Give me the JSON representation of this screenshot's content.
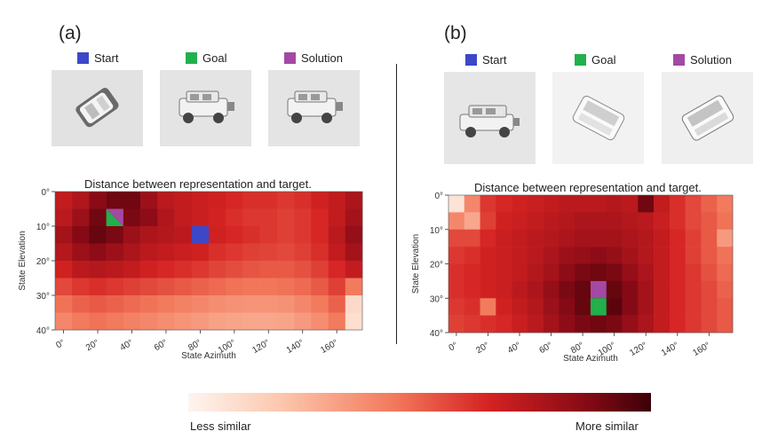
{
  "panels": [
    {
      "label": "(a)",
      "legend": [
        {
          "name": "Start",
          "color": "#3c48c8"
        },
        {
          "name": "Goal",
          "color": "#22b04b"
        },
        {
          "name": "Solution",
          "color": "#a349a4"
        }
      ],
      "thumbnails": [
        "car-top-view-icon",
        "jeep-side-view-icon",
        "jeep-side-view-icon"
      ],
      "chart_data": {
        "type": "heatmap",
        "title": "Distance between representation and target.",
        "xlabel": "State Azimuth",
        "ylabel": "State Elevation",
        "xticks": [
          "0°",
          "20°",
          "40°",
          "60°",
          "80°",
          "100°",
          "120°",
          "140°",
          "160°"
        ],
        "yticks": [
          "0°",
          "10°",
          "20°",
          "30°",
          "40°"
        ],
        "rows": 8,
        "cols": 18,
        "scale": "0 = less similar, 1 = more similar",
        "values": [
          [
            0.7,
            0.75,
            0.85,
            0.9,
            0.9,
            0.8,
            0.72,
            0.7,
            0.68,
            0.66,
            0.64,
            0.62,
            0.62,
            0.6,
            0.62,
            0.66,
            0.7,
            0.76
          ],
          [
            0.72,
            0.8,
            0.9,
            0.85,
            0.88,
            0.84,
            0.75,
            0.7,
            0.68,
            0.65,
            0.62,
            0.6,
            0.6,
            0.58,
            0.6,
            0.64,
            0.7,
            0.78
          ],
          [
            0.78,
            0.86,
            0.92,
            0.88,
            0.8,
            0.76,
            0.74,
            0.72,
            0.7,
            0.66,
            0.64,
            0.62,
            0.6,
            0.58,
            0.6,
            0.64,
            0.72,
            0.82
          ],
          [
            0.74,
            0.8,
            0.84,
            0.8,
            0.76,
            0.72,
            0.7,
            0.68,
            0.66,
            0.62,
            0.6,
            0.58,
            0.57,
            0.56,
            0.58,
            0.62,
            0.7,
            0.78
          ],
          [
            0.66,
            0.72,
            0.74,
            0.72,
            0.7,
            0.66,
            0.64,
            0.62,
            0.6,
            0.57,
            0.55,
            0.53,
            0.52,
            0.52,
            0.54,
            0.58,
            0.64,
            0.7
          ],
          [
            0.56,
            0.6,
            0.62,
            0.6,
            0.58,
            0.56,
            0.54,
            0.52,
            0.5,
            0.48,
            0.46,
            0.45,
            0.45,
            0.46,
            0.48,
            0.52,
            0.58,
            0.44
          ],
          [
            0.46,
            0.5,
            0.52,
            0.5,
            0.48,
            0.46,
            0.44,
            0.42,
            0.4,
            0.38,
            0.37,
            0.36,
            0.36,
            0.37,
            0.4,
            0.44,
            0.5,
            0.12
          ],
          [
            0.4,
            0.44,
            0.46,
            0.44,
            0.42,
            0.4,
            0.38,
            0.36,
            0.34,
            0.32,
            0.31,
            0.3,
            0.3,
            0.31,
            0.34,
            0.38,
            0.44,
            0.1
          ]
        ],
        "start": {
          "row": 2,
          "col": 8
        },
        "goal": {
          "row": 1,
          "col": 3
        },
        "solution": {
          "row": 1,
          "col": 3
        },
        "goal_solution_split": "diagonal"
      }
    },
    {
      "label": "(b)",
      "legend": [
        {
          "name": "Start",
          "color": "#3c48c8"
        },
        {
          "name": "Goal",
          "color": "#22b04b"
        },
        {
          "name": "Solution",
          "color": "#a349a4"
        }
      ],
      "thumbnails": [
        "jeep-side-view-icon",
        "car-rear-view-icon",
        "car-rear-view-icon"
      ],
      "chart_data": {
        "type": "heatmap",
        "title": "Distance between representation and target.",
        "xlabel": "State Azimuth",
        "ylabel": "State Elevation",
        "xticks": [
          "0°",
          "20°",
          "40°",
          "60°",
          "80°",
          "100°",
          "120°",
          "140°",
          "160°"
        ],
        "yticks": [
          "0°",
          "10°",
          "20°",
          "30°",
          "40°"
        ],
        "rows": 8,
        "cols": 18,
        "scale": "0 = less similar, 1 = more similar",
        "values": [
          [
            0.08,
            0.4,
            0.6,
            0.64,
            0.66,
            0.68,
            0.7,
            0.72,
            0.72,
            0.72,
            0.74,
            0.72,
            0.9,
            0.7,
            0.62,
            0.56,
            0.5,
            0.44
          ],
          [
            0.4,
            0.3,
            0.58,
            0.66,
            0.68,
            0.7,
            0.72,
            0.74,
            0.76,
            0.76,
            0.76,
            0.74,
            0.72,
            0.68,
            0.62,
            0.56,
            0.52,
            0.46
          ],
          [
            0.56,
            0.56,
            0.64,
            0.68,
            0.7,
            0.72,
            0.74,
            0.76,
            0.78,
            0.78,
            0.78,
            0.76,
            0.74,
            0.7,
            0.64,
            0.58,
            0.52,
            0.34
          ],
          [
            0.6,
            0.62,
            0.66,
            0.68,
            0.7,
            0.72,
            0.76,
            0.8,
            0.82,
            0.84,
            0.82,
            0.78,
            0.74,
            0.7,
            0.64,
            0.58,
            0.52,
            0.46
          ],
          [
            0.62,
            0.64,
            0.66,
            0.68,
            0.7,
            0.74,
            0.78,
            0.84,
            0.88,
            0.9,
            0.88,
            0.82,
            0.76,
            0.7,
            0.64,
            0.6,
            0.54,
            0.48
          ],
          [
            0.62,
            0.64,
            0.66,
            0.68,
            0.72,
            0.76,
            0.82,
            0.88,
            0.92,
            0.94,
            0.92,
            0.86,
            0.78,
            0.7,
            0.64,
            0.6,
            0.56,
            0.5
          ],
          [
            0.6,
            0.62,
            0.44,
            0.66,
            0.7,
            0.74,
            0.8,
            0.86,
            0.92,
            0.96,
            0.94,
            0.86,
            0.78,
            0.7,
            0.64,
            0.6,
            0.56,
            0.52
          ],
          [
            0.58,
            0.6,
            0.62,
            0.64,
            0.68,
            0.72,
            0.78,
            0.84,
            0.88,
            0.9,
            0.88,
            0.82,
            0.76,
            0.7,
            0.64,
            0.6,
            0.56,
            0.52
          ]
        ],
        "start": null,
        "goal": {
          "row": 6,
          "col": 9
        },
        "solution": {
          "row": 5,
          "col": 9
        },
        "goal_solution_split": "stacked"
      }
    }
  ],
  "colorbar": {
    "left_label": "Less similar",
    "right_label": "More similar"
  }
}
